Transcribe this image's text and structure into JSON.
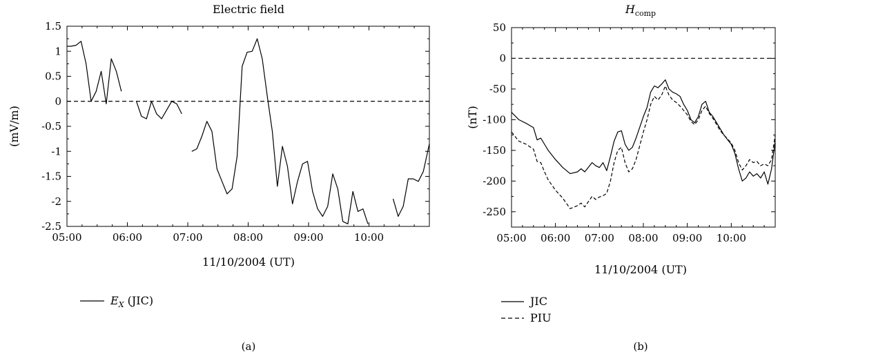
{
  "chart_data": [
    {
      "type": "line",
      "panel_label": "(a)",
      "title": "Electric field",
      "xlabel": "11/10/2004 (UT)",
      "ylabel": "(mV/m)",
      "xlim": [
        "05:00",
        "11:00"
      ],
      "ylim": [
        -2.5,
        1.5
      ],
      "x_ticks": [
        "05:00",
        "06:00",
        "07:00",
        "08:00",
        "09:00",
        "10:00"
      ],
      "y_ticks": [
        "1.5",
        "1",
        "0.5",
        "0",
        "-0.5",
        "-1",
        "-1.5",
        "-2",
        "-2.5"
      ],
      "reference_line": {
        "y": 0,
        "style": "dashed"
      },
      "legend_position": "bottom-left",
      "series": [
        {
          "name_main": "E",
          "name_sub": "X",
          "name_suffix": " (JIC)",
          "style": "solid",
          "segments": [
            [
              [
                "05:00",
                1.1
              ],
              [
                "05:04",
                1.1
              ],
              [
                "05:09",
                1.12
              ],
              [
                "05:14",
                1.2
              ],
              [
                "05:19",
                0.75
              ],
              [
                "05:24",
                0.0
              ],
              [
                "05:29",
                0.2
              ],
              [
                "05:34",
                0.6
              ],
              [
                "05:39",
                -0.05
              ],
              [
                "05:44",
                0.85
              ],
              [
                "05:49",
                0.6
              ],
              [
                "05:54",
                0.2
              ]
            ],
            [
              [
                "06:09",
                0.0
              ],
              [
                "06:14",
                -0.3
              ],
              [
                "06:19",
                -0.35
              ],
              [
                "06:24",
                0.0
              ],
              [
                "06:29",
                -0.25
              ],
              [
                "06:34",
                -0.35
              ],
              [
                "06:44",
                0.0
              ],
              [
                "06:49",
                -0.05
              ],
              [
                "06:54",
                -0.25
              ]
            ],
            [
              [
                "07:04",
                -1.0
              ],
              [
                "07:09",
                -0.95
              ],
              [
                "07:14",
                -0.7
              ],
              [
                "07:19",
                -0.4
              ],
              [
                "07:24",
                -0.6
              ],
              [
                "07:29",
                -1.35
              ],
              [
                "07:34",
                -1.6
              ],
              [
                "07:39",
                -1.85
              ],
              [
                "07:44",
                -1.75
              ],
              [
                "07:49",
                -1.1
              ],
              [
                "07:54",
                0.7
              ],
              [
                "07:59",
                0.98
              ],
              [
                "08:04",
                1.0
              ],
              [
                "08:09",
                1.25
              ],
              [
                "08:14",
                0.85
              ],
              [
                "08:19",
                0.1
              ],
              [
                "08:24",
                -0.6
              ],
              [
                "08:29",
                -1.7
              ],
              [
                "08:34",
                -0.9
              ],
              [
                "08:39",
                -1.3
              ],
              [
                "08:44",
                -2.05
              ],
              [
                "08:49",
                -1.6
              ],
              [
                "08:54",
                -1.25
              ],
              [
                "08:59",
                -1.2
              ],
              [
                "09:04",
                -1.8
              ],
              [
                "09:09",
                -2.15
              ],
              [
                "09:14",
                -2.3
              ],
              [
                "09:19",
                -2.1
              ],
              [
                "09:24",
                -1.45
              ],
              [
                "09:29",
                -1.75
              ],
              [
                "09:34",
                -2.4
              ],
              [
                "09:39",
                -2.45
              ],
              [
                "09:44",
                -1.8
              ],
              [
                "09:49",
                -2.2
              ],
              [
                "09:54",
                -2.15
              ],
              [
                "09:59",
                -2.45
              ]
            ],
            [
              [
                "10:24",
                -1.95
              ],
              [
                "10:29",
                -2.3
              ],
              [
                "10:34",
                -2.1
              ],
              [
                "10:39",
                -1.55
              ],
              [
                "10:44",
                -1.55
              ],
              [
                "10:49",
                -1.6
              ],
              [
                "10:54",
                -1.4
              ],
              [
                "11:00",
                -0.85
              ]
            ]
          ]
        }
      ]
    },
    {
      "type": "line",
      "panel_label": "(b)",
      "title_main": "H",
      "title_sub": "comp",
      "xlabel": "11/10/2004 (UT)",
      "ylabel": "(nT)",
      "xlim": [
        "05:00",
        "11:00"
      ],
      "ylim": [
        -275,
        50
      ],
      "x_ticks": [
        "05:00",
        "06:00",
        "07:00",
        "08:00",
        "09:00",
        "10:00"
      ],
      "y_ticks": [
        "50",
        "0",
        "-50",
        "-100",
        "-150",
        "-200",
        "-250"
      ],
      "reference_line": {
        "y": 0,
        "style": "dashed"
      },
      "legend_position": "bottom-left",
      "series": [
        {
          "name": "JIC",
          "style": "solid",
          "points": [
            [
              "05:00",
              -88
            ],
            [
              "05:10",
              -100
            ],
            [
              "05:20",
              -106
            ],
            [
              "05:30",
              -113
            ],
            [
              "05:35",
              -133
            ],
            [
              "05:40",
              -130
            ],
            [
              "05:45",
              -140
            ],
            [
              "05:50",
              -150
            ],
            [
              "06:00",
              -165
            ],
            [
              "06:10",
              -178
            ],
            [
              "06:20",
              -188
            ],
            [
              "06:30",
              -185
            ],
            [
              "06:35",
              -180
            ],
            [
              "06:40",
              -185
            ],
            [
              "06:50",
              -170
            ],
            [
              "06:55",
              -175
            ],
            [
              "07:00",
              -178
            ],
            [
              "07:05",
              -170
            ],
            [
              "07:10",
              -183
            ],
            [
              "07:15",
              -160
            ],
            [
              "07:20",
              -135
            ],
            [
              "07:25",
              -120
            ],
            [
              "07:30",
              -118
            ],
            [
              "07:35",
              -140
            ],
            [
              "07:40",
              -150
            ],
            [
              "07:45",
              -145
            ],
            [
              "07:50",
              -130
            ],
            [
              "08:00",
              -95
            ],
            [
              "08:05",
              -80
            ],
            [
              "08:10",
              -55
            ],
            [
              "08:15",
              -45
            ],
            [
              "08:20",
              -48
            ],
            [
              "08:25",
              -42
            ],
            [
              "08:30",
              -35
            ],
            [
              "08:35",
              -50
            ],
            [
              "08:40",
              -55
            ],
            [
              "08:45",
              -58
            ],
            [
              "08:50",
              -62
            ],
            [
              "08:55",
              -75
            ],
            [
              "09:00",
              -85
            ],
            [
              "09:05",
              -100
            ],
            [
              "09:10",
              -105
            ],
            [
              "09:15",
              -95
            ],
            [
              "09:20",
              -75
            ],
            [
              "09:25",
              -70
            ],
            [
              "09:30",
              -88
            ],
            [
              "09:35",
              -95
            ],
            [
              "09:40",
              -105
            ],
            [
              "09:45",
              -115
            ],
            [
              "09:50",
              -125
            ],
            [
              "10:00",
              -140
            ],
            [
              "10:05",
              -155
            ],
            [
              "10:10",
              -180
            ],
            [
              "10:15",
              -200
            ],
            [
              "10:20",
              -195
            ],
            [
              "10:25",
              -185
            ],
            [
              "10:30",
              -192
            ],
            [
              "10:35",
              -188
            ],
            [
              "10:40",
              -195
            ],
            [
              "10:45",
              -185
            ],
            [
              "10:50",
              -205
            ],
            [
              "10:55",
              -180
            ],
            [
              "11:00",
              -135
            ]
          ]
        },
        {
          "name": "PIU",
          "style": "dashed",
          "points": [
            [
              "05:00",
              -120
            ],
            [
              "05:10",
              -135
            ],
            [
              "05:20",
              -140
            ],
            [
              "05:30",
              -148
            ],
            [
              "05:35",
              -168
            ],
            [
              "05:40",
              -170
            ],
            [
              "05:45",
              -185
            ],
            [
              "05:50",
              -198
            ],
            [
              "06:00",
              -215
            ],
            [
              "06:10",
              -228
            ],
            [
              "06:20",
              -245
            ],
            [
              "06:30",
              -240
            ],
            [
              "06:35",
              -236
            ],
            [
              "06:40",
              -242
            ],
            [
              "06:50",
              -225
            ],
            [
              "06:55",
              -230
            ],
            [
              "07:00",
              -226
            ],
            [
              "07:05",
              -224
            ],
            [
              "07:10",
              -220
            ],
            [
              "07:15",
              -200
            ],
            [
              "07:20",
              -170
            ],
            [
              "07:25",
              -150
            ],
            [
              "07:30",
              -145
            ],
            [
              "07:35",
              -170
            ],
            [
              "07:40",
              -185
            ],
            [
              "07:45",
              -180
            ],
            [
              "07:50",
              -165
            ],
            [
              "08:00",
              -120
            ],
            [
              "08:05",
              -100
            ],
            [
              "08:10",
              -75
            ],
            [
              "08:15",
              -62
            ],
            [
              "08:20",
              -68
            ],
            [
              "08:25",
              -60
            ],
            [
              "08:30",
              -45
            ],
            [
              "08:35",
              -60
            ],
            [
              "08:40",
              -68
            ],
            [
              "08:45",
              -72
            ],
            [
              "08:50",
              -78
            ],
            [
              "08:55",
              -85
            ],
            [
              "09:00",
              -92
            ],
            [
              "09:05",
              -103
            ],
            [
              "09:10",
              -108
            ],
            [
              "09:15",
              -100
            ],
            [
              "09:20",
              -85
            ],
            [
              "09:25",
              -78
            ],
            [
              "09:30",
              -90
            ],
            [
              "09:35",
              -98
            ],
            [
              "09:40",
              -108
            ],
            [
              "09:45",
              -118
            ],
            [
              "09:50",
              -125
            ],
            [
              "10:00",
              -138
            ],
            [
              "10:05",
              -150
            ],
            [
              "10:10",
              -170
            ],
            [
              "10:15",
              -182
            ],
            [
              "10:20",
              -175
            ],
            [
              "10:25",
              -165
            ],
            [
              "10:30",
              -170
            ],
            [
              "10:35",
              -168
            ],
            [
              "10:40",
              -175
            ],
            [
              "10:45",
              -172
            ],
            [
              "10:50",
              -175
            ],
            [
              "10:55",
              -165
            ],
            [
              "11:00",
              -125
            ]
          ]
        }
      ]
    }
  ]
}
